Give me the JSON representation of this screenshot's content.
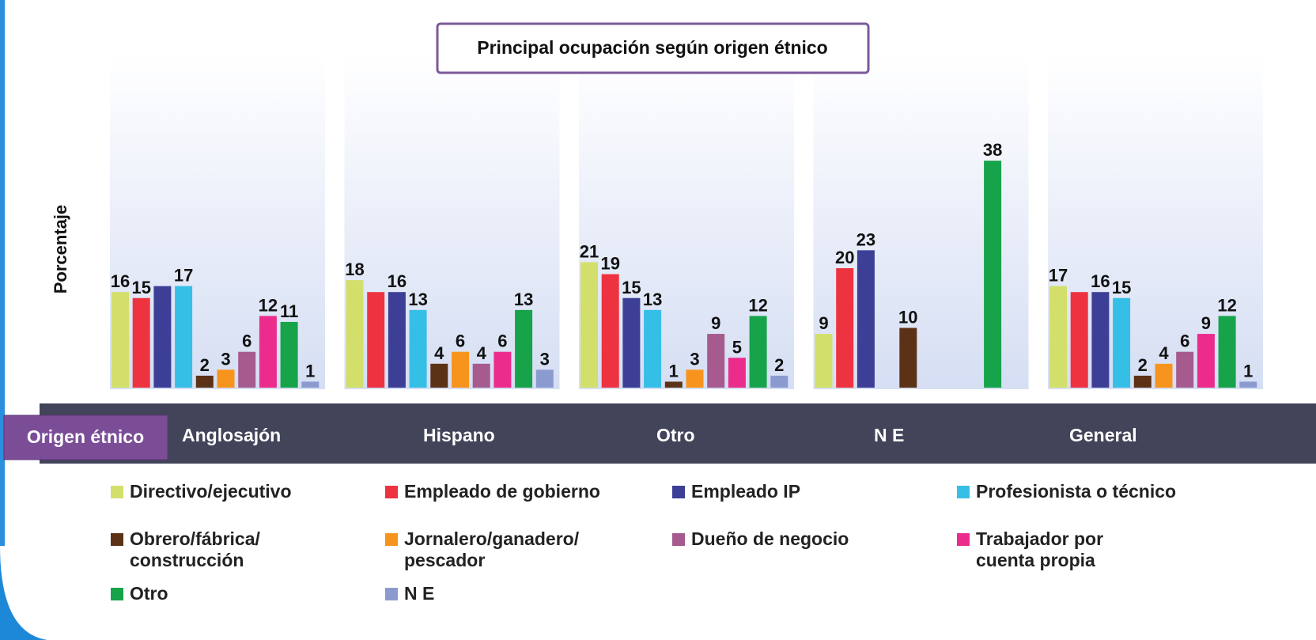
{
  "chart_data": {
    "type": "bar",
    "title": "Principal ocupación según origen étnico",
    "y_label": "Porcentaje",
    "x_label": "Origen étnico",
    "categories": [
      "Anglosajón",
      "Hispano",
      "Otro",
      "N E",
      "General"
    ],
    "series": [
      {
        "name": "Directivo/ejecutivo",
        "color": "#d3df6b",
        "values": [
          16,
          18,
          21,
          9,
          17
        ]
      },
      {
        "name": "Empleado de gobierno",
        "color": "#ee3340",
        "values": [
          15,
          16,
          19,
          20,
          16
        ],
        "value_labels": [
          "15",
          null,
          "19",
          "20",
          null
        ]
      },
      {
        "name": "Empleado IP",
        "color": "#3c3f95",
        "values": [
          17,
          16,
          15,
          23,
          16
        ],
        "value_labels": [
          null,
          "16",
          "15",
          "23",
          "16"
        ]
      },
      {
        "name": "Profesionista o técnico",
        "color": "#35bfe6",
        "values": [
          17,
          13,
          13,
          null,
          15
        ]
      },
      {
        "name": "Obrero/fábrica/ construcción",
        "color": "#5c3217",
        "values": [
          2,
          4,
          1,
          10,
          2
        ]
      },
      {
        "name": "Jornalero/ganadero/ pescador",
        "color": "#f7941d",
        "values": [
          3,
          6,
          3,
          null,
          4
        ]
      },
      {
        "name": "Dueño de negocio",
        "color": "#a65a8e",
        "values": [
          6,
          4,
          9,
          null,
          6
        ]
      },
      {
        "name": "Trabajador por cuenta propia",
        "color": "#ec2c8c",
        "values": [
          12,
          6,
          5,
          null,
          9
        ]
      },
      {
        "name": "Otro",
        "color": "#17a34a",
        "values": [
          11,
          13,
          12,
          38,
          12
        ]
      },
      {
        "name": "N E",
        "color": "#8b9bd0",
        "values": [
          1,
          3,
          2,
          null,
          1
        ]
      }
    ]
  }
}
